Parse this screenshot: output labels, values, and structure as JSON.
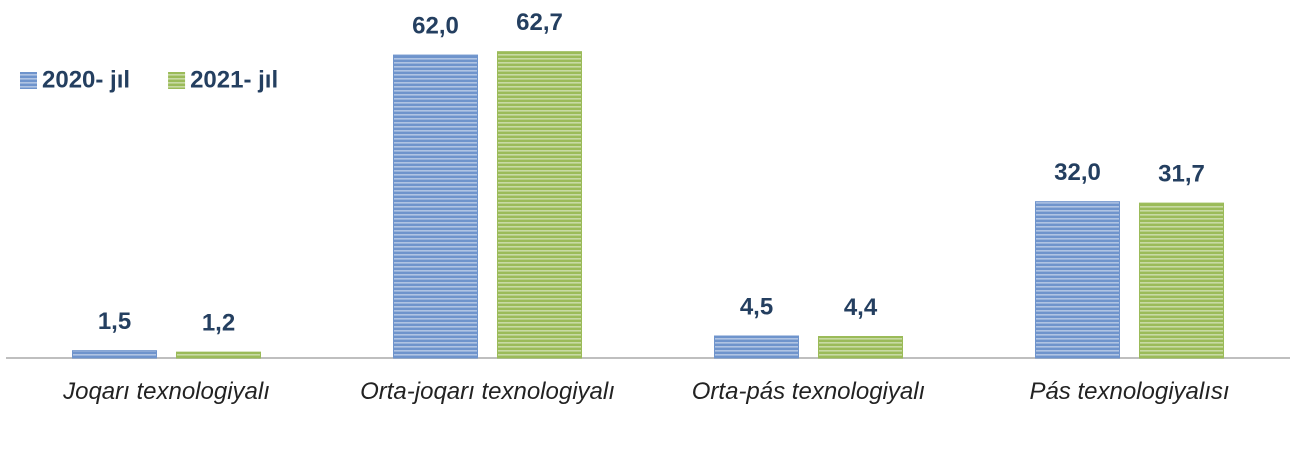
{
  "chart_data": {
    "type": "bar",
    "categories": [
      "Joqarı texnologiyalı",
      "Orta-joqarı texnologiyalı",
      "Orta-pás texnologiyalı",
      "Pás texnologiyalısı"
    ],
    "series": [
      {
        "name": "2020- jıl",
        "color": "#6f94cc",
        "values": [
          1.5,
          62.0,
          4.5,
          32.0
        ],
        "value_labels": [
          "1,5",
          "62,0",
          "4,5",
          "32,0"
        ]
      },
      {
        "name": "2021- jıl",
        "color": "#9bbb59",
        "values": [
          1.2,
          62.7,
          4.4,
          31.7
        ],
        "value_labels": [
          "1,2",
          "62,7",
          "4,4",
          "31,7"
        ]
      }
    ],
    "ylim": [
      0,
      70
    ],
    "legend": "top-left"
  }
}
